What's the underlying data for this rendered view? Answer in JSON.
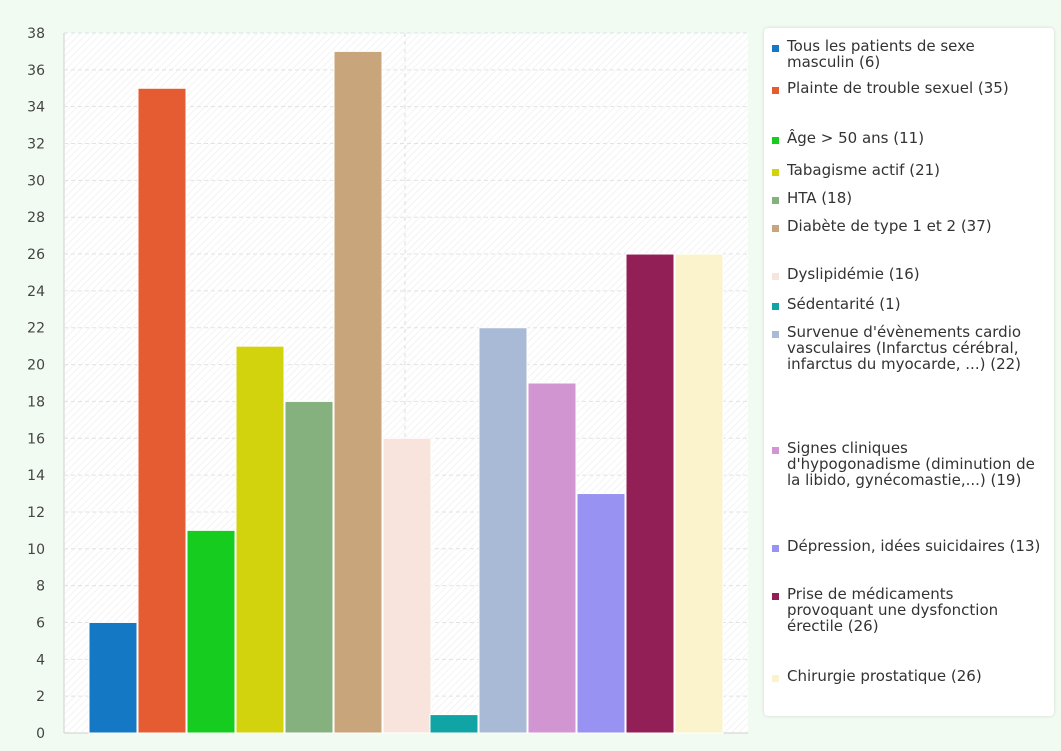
{
  "chart_data": {
    "type": "bar",
    "ylim": [
      0,
      38
    ],
    "ytick_step": 2,
    "grid": true,
    "legend_position": "right",
    "title": "",
    "xlabel": "",
    "ylabel": "",
    "series": [
      {
        "name": "Tous les patients de sexe masculin (6)",
        "value": 6,
        "color": "#1478c4"
      },
      {
        "name": "Plainte de trouble sexuel (35)",
        "value": 35,
        "color": "#e65c32"
      },
      {
        "name": "Âge > 50 ans (11)",
        "value": 11,
        "color": "#16cc1e"
      },
      {
        "name": "Tabagisme actif (21)",
        "value": 21,
        "color": "#d2d30c"
      },
      {
        "name": "HTA (18)",
        "value": 18,
        "color": "#84b17e"
      },
      {
        "name": "Diabète de type 1 et 2 (37)",
        "value": 37,
        "color": "#c8a57a"
      },
      {
        "name": "Dyslipidémie (16)",
        "value": 16,
        "color": "#f8e4dc"
      },
      {
        "name": "Sédentarité (1)",
        "value": 1,
        "color": "#10a5a4"
      },
      {
        "name": "Survenue d'évènements cardio vasculaires (Infarctus cérébral, infarctus du myocarde, ...) (22)",
        "value": 22,
        "color": "#a9bad6"
      },
      {
        "name": "Signes cliniques d'hypogonadisme (diminution de la libido, gynécomastie,...) (19)",
        "value": 19,
        "color": "#d196d1"
      },
      {
        "name": "Dépression, idées suicidaires (13)",
        "value": 13,
        "color": "#9893f2"
      },
      {
        "name": "Prise de médicaments provoquant une dysfonction érectile (26)",
        "value": 26,
        "color": "#922056"
      },
      {
        "name": "Chirurgie prostatique (26)",
        "value": 26,
        "color": "#faf3cb"
      }
    ]
  }
}
